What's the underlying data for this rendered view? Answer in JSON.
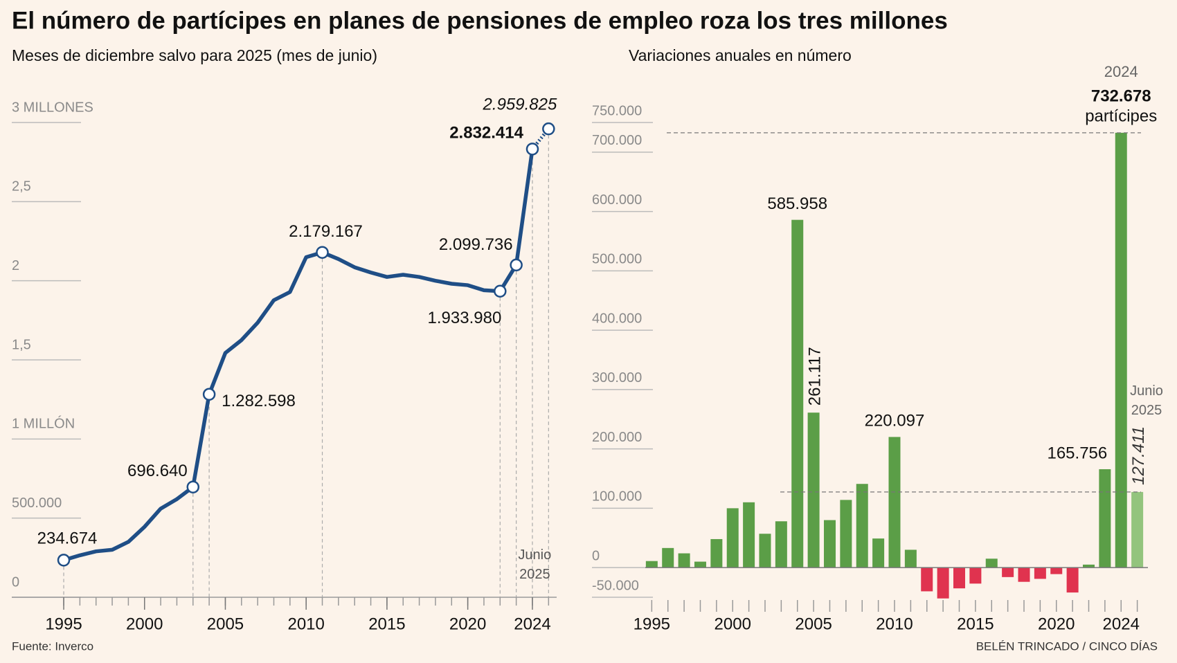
{
  "title": "El número de partícipes en planes de pensiones de empleo roza los tres millones",
  "source": "Fuente: Inverco",
  "credit": "BELÉN TRINCADO / CINCO DÍAS",
  "chart_data": [
    {
      "type": "line",
      "subtitle": "Meses de diciembre salvo para 2025 (mes de junio)",
      "x": [
        1995,
        1996,
        1997,
        1998,
        1999,
        2000,
        2001,
        2002,
        2003,
        2004,
        2005,
        2006,
        2007,
        2008,
        2009,
        2010,
        2011,
        2012,
        2013,
        2014,
        2015,
        2016,
        2017,
        2018,
        2019,
        2020,
        2021,
        2022,
        2023,
        2024,
        2025
      ],
      "series": [
        {
          "color": "#1f4e86",
          "values": [
            234674,
            265000,
            290000,
            300000,
            350000,
            445000,
            560000,
            620000,
            696640,
            1282598,
            1543715,
            1625000,
            1735000,
            1877000,
            1929000,
            2149000,
            2179167,
            2137000,
            2085000,
            2052000,
            2024000,
            2038000,
            2024000,
            2000000,
            1981000,
            1972000,
            1940000,
            1933980,
            2099736,
            2832414,
            2959825
          ],
          "value_labels": [
            "234.674",
            null,
            null,
            null,
            null,
            null,
            null,
            null,
            "696.640",
            "1.282.598",
            null,
            null,
            null,
            null,
            null,
            null,
            "2.179.167",
            null,
            null,
            null,
            null,
            null,
            null,
            null,
            null,
            null,
            null,
            "1.933.980",
            "2.099.736",
            "2.832.414",
            "2.959.825"
          ]
        }
      ],
      "xlim": [
        1992,
        2025.5
      ],
      "xticks": [
        1995,
        2000,
        2005,
        2010,
        2015,
        2020,
        2024
      ],
      "ylim": [
        0,
        3000000
      ],
      "yticks": [
        0,
        {
          "value": 500000,
          "label": "500.000"
        },
        {
          "value": 1000000,
          "label": "1 MILLÓN"
        },
        {
          "value": 1500000,
          "label": "1,5"
        },
        {
          "value": 2000000,
          "label": "2"
        },
        {
          "value": 2500000,
          "label": "2,5"
        },
        {
          "value": 3000000,
          "label": "3 MILLONES"
        }
      ],
      "annotation": "Junio 2025",
      "grid": true
    },
    {
      "type": "bar",
      "subtitle": "Variaciones anuales en número",
      "x": [
        1995,
        1996,
        1997,
        1998,
        1999,
        2000,
        2001,
        2002,
        2003,
        2004,
        2005,
        2006,
        2007,
        2008,
        2009,
        2010,
        2011,
        2012,
        2013,
        2014,
        2015,
        2016,
        2017,
        2018,
        2019,
        2020,
        2021,
        2022,
        2023,
        2024,
        2025
      ],
      "series": [
        {
          "color": "#5b9e47",
          "negative_color": "#e0334f",
          "last_color": "#93c47d",
          "values": [
            11000,
            33000,
            24000,
            10000,
            48000,
            100000,
            110000,
            57000,
            78000,
            585958,
            261117,
            80000,
            114000,
            141000,
            49000,
            220097,
            30000,
            -40000,
            -52000,
            -35000,
            -27000,
            15000,
            -16000,
            -24000,
            -19000,
            -11000,
            -42000,
            5000,
            165756,
            732678,
            127411
          ],
          "value_labels": [
            null,
            null,
            null,
            null,
            null,
            null,
            null,
            null,
            null,
            "585.958",
            "261.117",
            null,
            null,
            null,
            null,
            "220.097",
            null,
            null,
            null,
            null,
            null,
            null,
            null,
            null,
            null,
            null,
            null,
            null,
            "165.756",
            "732.678",
            "127.411"
          ]
        }
      ],
      "xlim": [
        1994.6,
        2026
      ],
      "xticks": [
        1995,
        2000,
        2005,
        2010,
        2015,
        2020,
        2024
      ],
      "ylim": [
        -50000,
        750000
      ],
      "yticks": [
        {
          "value": -50000,
          "label": "-50.000"
        },
        0,
        {
          "value": 100000,
          "label": "100.000"
        },
        {
          "value": 200000,
          "label": "200.000"
        },
        {
          "value": 300000,
          "label": "300.000"
        },
        {
          "value": 400000,
          "label": "400.000"
        },
        {
          "value": 500000,
          "label": "500.000"
        },
        {
          "value": 600000,
          "label": "600.000"
        },
        {
          "value": 700000,
          "label": "700.000"
        },
        {
          "value": 750000,
          "label": "750.000"
        }
      ],
      "annotations": [
        "2024",
        "partícipes",
        "Junio 2025"
      ],
      "grid": true
    }
  ]
}
